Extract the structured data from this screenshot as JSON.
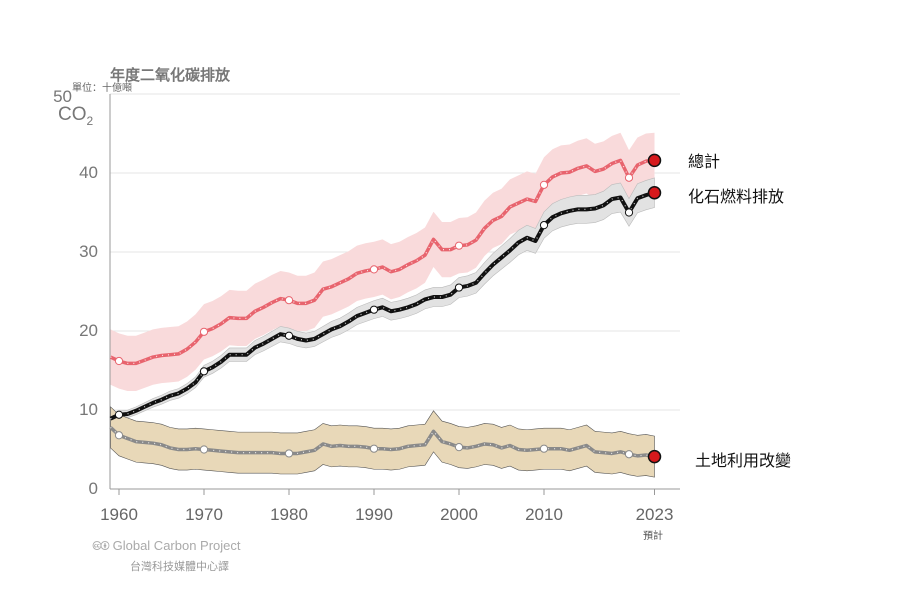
{
  "chart_data": {
    "type": "line",
    "title": "年度二氧化碳排放",
    "ylabel_unit": "單位：十億噸",
    "ylabel": "CO2",
    "ylim": [
      0,
      50
    ],
    "yticks": [
      "0",
      "10",
      "20",
      "30",
      "40",
      "50"
    ],
    "xlim": [
      1959,
      2023
    ],
    "xticks": [
      "1960",
      "1970",
      "1980",
      "1990",
      "2000",
      "2010",
      "2023"
    ],
    "xtick_note": "預計",
    "grid": true,
    "x_start": 1959,
    "marker_years": [
      1960,
      1970,
      1980,
      1990,
      2000,
      2010,
      2020
    ],
    "series": [
      {
        "name": "總計",
        "color": "#e8646e",
        "band": "#f9dadb",
        "uncertainty": 3.5,
        "values": null
      },
      {
        "name": "化石燃料排放",
        "color": "#111111",
        "band": "#e2e2e2",
        "uncertainty_pct": 0.05,
        "values": [
          8.9,
          9.4,
          9.5,
          9.9,
          10.4,
          10.9,
          11.3,
          11.8,
          12.1,
          12.7,
          13.5,
          14.9,
          15.4,
          16.1,
          17.0,
          17.0,
          17.0,
          17.9,
          18.4,
          19.0,
          19.6,
          19.4,
          19.0,
          18.8,
          19.0,
          19.6,
          20.2,
          20.6,
          21.2,
          21.9,
          22.3,
          22.7,
          23.0,
          22.5,
          22.7,
          23.0,
          23.4,
          24.0,
          24.3,
          24.3,
          24.6,
          25.5,
          25.7,
          26.1,
          27.3,
          28.4,
          29.3,
          30.2,
          31.2,
          31.8,
          31.4,
          33.4,
          34.4,
          34.9,
          35.2,
          35.4,
          35.4,
          35.5,
          35.9,
          36.7,
          36.9,
          35.0,
          36.8,
          37.2,
          37.5
        ]
      },
      {
        "name": "土地利用改變",
        "color": "#8a8a8a",
        "band": "#e8d8b8",
        "uncertainty": 2.6,
        "values": [
          7.8,
          6.8,
          6.4,
          6.0,
          5.9,
          5.8,
          5.6,
          5.2,
          5.0,
          5.0,
          5.1,
          5.0,
          4.9,
          4.8,
          4.7,
          4.6,
          4.6,
          4.6,
          4.6,
          4.6,
          4.5,
          4.5,
          4.5,
          4.7,
          4.9,
          5.7,
          5.4,
          5.5,
          5.4,
          5.4,
          5.3,
          5.1,
          5.1,
          5.0,
          5.1,
          5.4,
          5.5,
          5.6,
          7.3,
          6.0,
          5.7,
          5.3,
          5.2,
          5.4,
          5.7,
          5.6,
          5.2,
          5.5,
          5.0,
          4.9,
          5.0,
          5.1,
          5.1,
          5.1,
          4.9,
          5.2,
          5.5,
          4.7,
          4.6,
          4.5,
          4.7,
          4.4,
          4.2,
          4.3,
          4.1
        ]
      }
    ],
    "end_marker_color": "#d7191c"
  },
  "credits": {
    "source": "🅭🅯 Global Carbon Project",
    "translator": "台灣科技媒體中心譯"
  }
}
